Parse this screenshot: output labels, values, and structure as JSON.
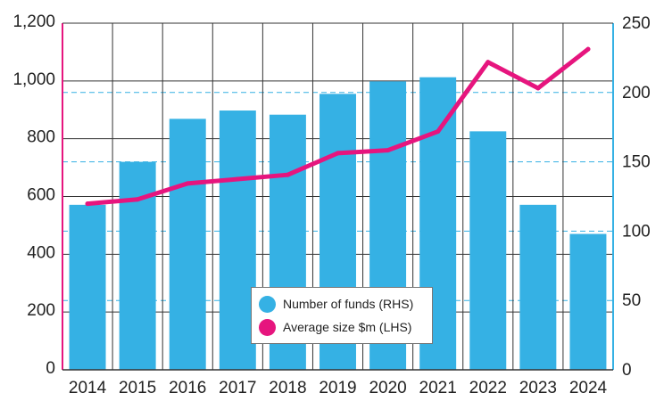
{
  "chart_data": {
    "type": "bar+line",
    "categories": [
      "2014",
      "2015",
      "2016",
      "2017",
      "2018",
      "2019",
      "2020",
      "2021",
      "2022",
      "2023",
      "2024"
    ],
    "series": [
      {
        "name": "Number of funds (RHS)",
        "type": "bar",
        "axis": "right",
        "color": "#35b1e4",
        "values": [
          119,
          150,
          181,
          187,
          184,
          199,
          208,
          211,
          172,
          119,
          98
        ]
      },
      {
        "name": "Average size $m (LHS)",
        "type": "line",
        "axis": "left",
        "color": "#e6157e",
        "values": [
          575,
          590,
          645,
          660,
          675,
          750,
          760,
          825,
          1065,
          975,
          1110
        ]
      }
    ],
    "left_axis": {
      "ylim": [
        0,
        1200
      ],
      "ticks": [
        "0",
        "200",
        "400",
        "600",
        "800",
        "1,000",
        "1,200"
      ],
      "color": "#e6157e"
    },
    "right_axis": {
      "ylim": [
        0,
        250
      ],
      "ticks": [
        "0",
        "50",
        "100",
        "150",
        "200",
        "250"
      ],
      "color": "#35b1e4"
    },
    "grid": true,
    "legend_position": "bottom-center"
  }
}
